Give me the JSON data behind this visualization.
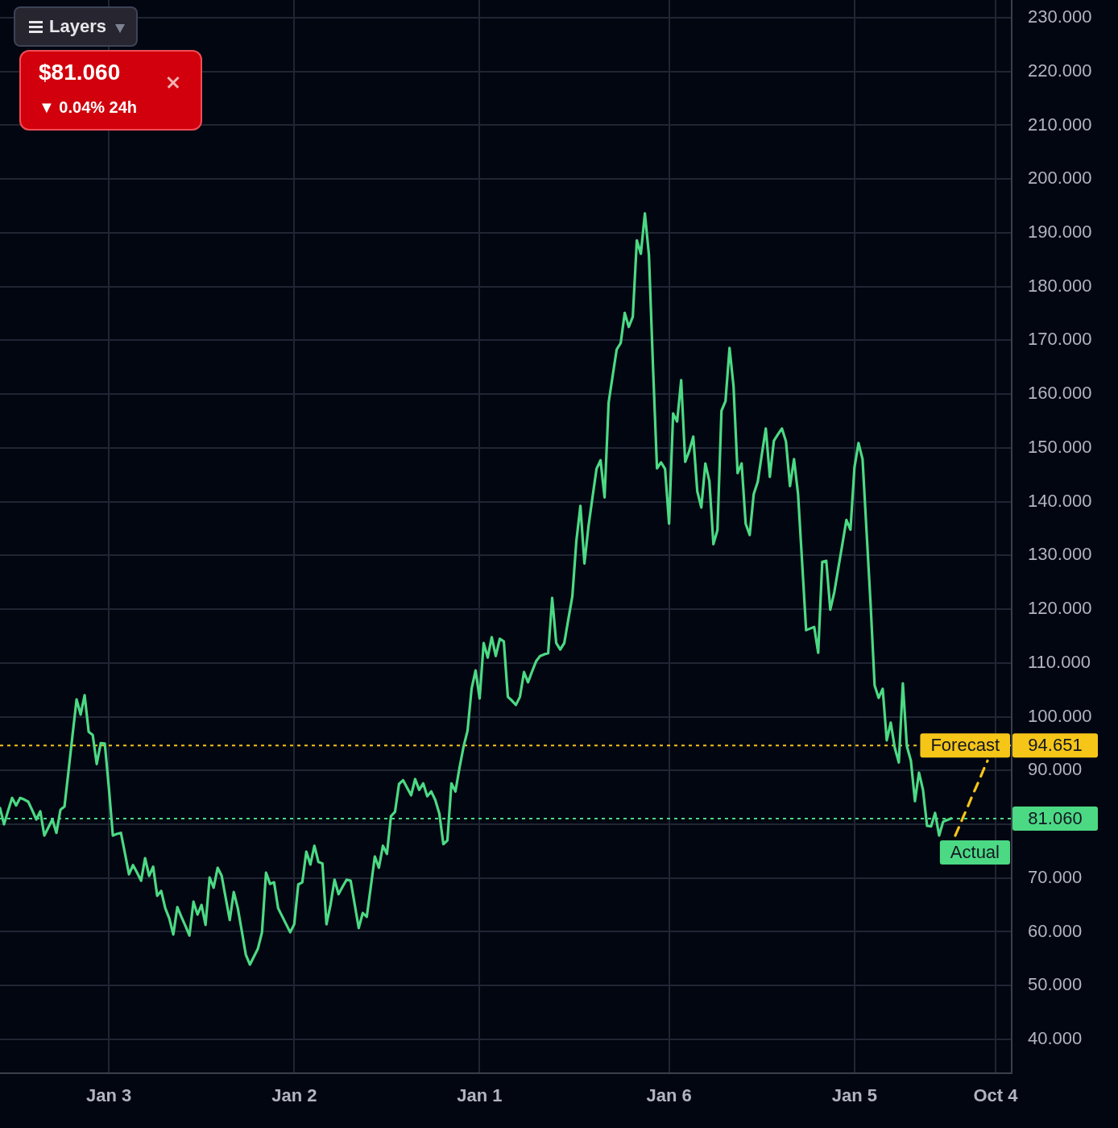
{
  "chart_data": {
    "type": "line",
    "categories": [
      null,
      null,
      null,
      null,
      null,
      null,
      null,
      null,
      null,
      null,
      null,
      null,
      null,
      null,
      null,
      null,
      null,
      null,
      null,
      null,
      null,
      null,
      null,
      null,
      null,
      null,
      null,
      "Jan 3",
      null,
      null,
      null,
      null,
      null,
      null,
      null,
      null,
      null,
      null,
      null,
      null,
      null,
      null,
      null,
      null,
      null,
      null,
      null,
      null,
      null,
      null,
      null,
      null,
      null,
      null,
      null,
      null,
      null,
      null,
      null,
      null,
      null,
      null,
      null,
      null,
      null,
      null,
      null,
      null,
      null,
      null,
      null,
      null,
      null,
      "Jan 2",
      null,
      null,
      null,
      null,
      null,
      null,
      null,
      null,
      null,
      null,
      null,
      null,
      null,
      null,
      null,
      null,
      null,
      null,
      null,
      null,
      null,
      null,
      null,
      null,
      null,
      null,
      null,
      null,
      null,
      null,
      null,
      null,
      null,
      null,
      null,
      null,
      null,
      null,
      null,
      null,
      null,
      null,
      null,
      null,
      null,
      "Jan 1",
      null,
      null,
      null,
      null,
      null,
      null,
      null,
      null,
      null,
      null,
      null,
      null,
      null,
      null,
      null,
      null,
      null,
      null,
      null,
      null,
      null,
      null,
      null,
      null,
      null,
      null,
      null,
      null,
      null,
      null,
      null,
      null,
      null,
      null,
      null,
      null,
      null,
      null,
      null,
      null,
      null,
      null,
      null,
      null,
      null,
      null,
      "Jan 6",
      null,
      null,
      null,
      null,
      null,
      null,
      null,
      null,
      null,
      null,
      null,
      null,
      null,
      null,
      null,
      null,
      null,
      null,
      null,
      null,
      null,
      null,
      null,
      null,
      null,
      null,
      null,
      null,
      null,
      null,
      null,
      null,
      null,
      null,
      null,
      null,
      null,
      null,
      null,
      null,
      null,
      null,
      null,
      null,
      null,
      "Jan 5",
      null,
      null,
      null,
      null,
      null,
      null,
      null,
      null,
      null,
      null,
      null,
      null,
      null,
      null,
      null,
      null,
      null,
      null,
      null,
      null,
      null,
      null,
      null,
      null,
      null,
      null,
      null,
      null,
      null,
      null,
      null,
      null,
      null,
      null,
      "Oct 4",
      null,
      null,
      null,
      null
    ],
    "series": [
      {
        "color": "#4cd984",
        "line_style": "solid",
        "values": [
          83.0,
          80.0,
          82.5,
          84.9,
          83.5,
          84.9,
          84.6,
          84.2,
          82.6,
          80.9,
          82.4,
          77.9,
          79.4,
          80.9,
          78.4,
          82.7,
          83.3,
          89.9,
          96.6,
          103.2,
          100.4,
          104.0,
          97.2,
          96.6,
          91.2,
          95.1,
          95.0,
          86.9,
          77.9,
          78.2,
          78.4,
          74.6,
          70.7,
          72.4,
          71.0,
          69.5,
          73.7,
          70.4,
          72.1,
          66.7,
          67.6,
          64.4,
          62.5,
          59.5,
          64.6,
          62.8,
          61.1,
          59.3,
          65.6,
          63.2,
          65.0,
          61.3,
          70.1,
          68.2,
          71.9,
          70.4,
          66.3,
          62.2,
          67.4,
          64.4,
          60.1,
          55.7,
          53.9,
          55.4,
          56.9,
          59.9,
          71.0,
          68.9,
          69.2,
          64.4,
          62.9,
          61.4,
          59.9,
          61.4,
          68.8,
          69.2,
          74.9,
          72.5,
          76.0,
          73.0,
          72.7,
          61.4,
          65.0,
          69.7,
          67.0,
          68.4,
          69.7,
          69.5,
          65.1,
          60.7,
          63.5,
          62.8,
          68.4,
          74.0,
          71.9,
          76.0,
          74.5,
          81.5,
          82.3,
          87.5,
          88.2,
          86.8,
          85.4,
          88.4,
          86.4,
          87.6,
          85.2,
          86.1,
          84.5,
          82.0,
          76.3,
          77.0,
          87.6,
          86.1,
          90.5,
          94.4,
          97.4,
          105.2,
          108.6,
          103.4,
          113.7,
          111.0,
          114.8,
          111.3,
          114.5,
          114.0,
          103.7,
          103.0,
          102.2,
          103.7,
          108.3,
          106.4,
          108.4,
          110.3,
          111.3,
          111.6,
          111.8,
          122.1,
          113.7,
          112.5,
          113.7,
          118.1,
          122.4,
          132.7,
          139.2,
          128.5,
          135.4,
          140.8,
          146.1,
          147.7,
          140.8,
          158.4,
          163.4,
          168.3,
          169.5,
          175.1,
          172.5,
          174.4,
          188.6,
          186.1,
          193.6,
          185.9,
          165.3,
          146.2,
          147.3,
          146.1,
          135.9,
          156.4,
          154.9,
          162.6,
          147.4,
          149.4,
          152.1,
          141.9,
          138.9,
          147.1,
          143.8,
          132.1,
          134.7,
          156.9,
          158.7,
          168.6,
          161.4,
          145.3,
          147.1,
          135.9,
          133.8,
          141.4,
          143.7,
          148.7,
          153.6,
          144.6,
          151.3,
          152.5,
          153.6,
          151.2,
          142.9,
          147.9,
          141.4,
          128.8,
          116.1,
          116.4,
          116.7,
          111.9,
          128.8,
          129.0,
          119.9,
          123.2,
          127.7,
          132.1,
          136.6,
          134.8,
          146.4,
          150.9,
          147.9,
          134.4,
          120.9,
          105.8,
          103.5,
          105.2,
          95.6,
          98.9,
          94.2,
          91.5,
          106.2,
          94.5,
          91.8,
          84.3,
          89.6,
          86.4,
          79.7,
          79.6,
          82.1,
          77.9,
          80.5,
          80.8,
          81.1,
          null,
          null,
          null,
          null,
          null,
          null,
          null,
          null,
          null,
          null,
          null,
          null,
          null,
          null,
          null
        ]
      },
      {
        "color": "#f5c518",
        "line_style": "dashed",
        "values": [
          null,
          null,
          null,
          null,
          null,
          null,
          null,
          null,
          null,
          null,
          null,
          null,
          null,
          null,
          null,
          null,
          null,
          null,
          null,
          null,
          null,
          null,
          null,
          null,
          null,
          null,
          null,
          null,
          null,
          null,
          null,
          null,
          null,
          null,
          null,
          null,
          null,
          null,
          null,
          null,
          null,
          null,
          null,
          null,
          null,
          null,
          null,
          null,
          null,
          null,
          null,
          null,
          null,
          null,
          null,
          null,
          null,
          null,
          null,
          null,
          null,
          null,
          null,
          null,
          null,
          null,
          null,
          null,
          null,
          null,
          null,
          null,
          null,
          null,
          null,
          null,
          null,
          null,
          null,
          null,
          null,
          null,
          null,
          null,
          null,
          null,
          null,
          null,
          null,
          null,
          null,
          null,
          null,
          null,
          null,
          null,
          null,
          null,
          null,
          null,
          null,
          null,
          null,
          null,
          null,
          null,
          null,
          null,
          null,
          null,
          null,
          null,
          null,
          null,
          null,
          null,
          null,
          null,
          null,
          null,
          null,
          null,
          null,
          null,
          null,
          null,
          null,
          null,
          null,
          null,
          null,
          null,
          null,
          null,
          null,
          null,
          null,
          null,
          null,
          null,
          null,
          null,
          null,
          null,
          null,
          null,
          null,
          null,
          null,
          null,
          null,
          null,
          null,
          null,
          null,
          null,
          null,
          null,
          null,
          null,
          null,
          null,
          null,
          null,
          null,
          null,
          null,
          null,
          null,
          null,
          null,
          null,
          null,
          null,
          null,
          null,
          null,
          null,
          null,
          null,
          null,
          null,
          null,
          null,
          null,
          null,
          null,
          null,
          null,
          null,
          null,
          null,
          null,
          null,
          null,
          null,
          null,
          null,
          null,
          null,
          null,
          null,
          null,
          null,
          null,
          null,
          null,
          null,
          null,
          null,
          null,
          null,
          null,
          null,
          null,
          null,
          null,
          null,
          null,
          null,
          null,
          null,
          null,
          null,
          null,
          null,
          null,
          null,
          null,
          null,
          null,
          null,
          null,
          null,
          null,
          null,
          null,
          77.9,
          79.6,
          81.4,
          83.1,
          84.9,
          86.6,
          88.3,
          90.1,
          91.8,
          null,
          null,
          null,
          null,
          null,
          null
        ]
      }
    ],
    "ylim": [
      33.7,
      233.3
    ],
    "yticks": [
      {
        "value": 40,
        "label": "40.000"
      },
      {
        "value": 50,
        "label": "50.000"
      },
      {
        "value": 60,
        "label": "60.000"
      },
      {
        "value": 70,
        "label": "70.000"
      },
      {
        "value": 80,
        "label": null
      },
      {
        "value": 90,
        "label": "90.000"
      },
      {
        "value": 100,
        "label": "100.000"
      },
      {
        "value": 110,
        "label": "110.000"
      },
      {
        "value": 120,
        "label": "120.000"
      },
      {
        "value": 130,
        "label": "130.000"
      },
      {
        "value": 140,
        "label": "140.000"
      },
      {
        "value": 150,
        "label": "150.000"
      },
      {
        "value": 160,
        "label": "160.000"
      },
      {
        "value": 170,
        "label": "170.000"
      },
      {
        "value": 180,
        "label": "180.000"
      },
      {
        "value": 190,
        "label": "190.000"
      },
      {
        "value": 200,
        "label": "200.000"
      },
      {
        "value": 210,
        "label": "210.000"
      },
      {
        "value": 220,
        "label": "220.000"
      },
      {
        "value": 230,
        "label": "230.000"
      }
    ],
    "grid": true,
    "legend": false,
    "marker": "none",
    "ref_lines": [
      {
        "axis": "y",
        "value": 94.651,
        "label": "Forecast",
        "color": "#f5c518",
        "line_style": "dotted"
      },
      {
        "axis": "y",
        "value": 81.06,
        "label": "Actual",
        "color": "#4cd984",
        "line_style": "dotted"
      }
    ],
    "annotations": [
      "Layers",
      "$81.060",
      "▼ 0.04% 24h",
      "94.651",
      "81.060"
    ]
  }
}
